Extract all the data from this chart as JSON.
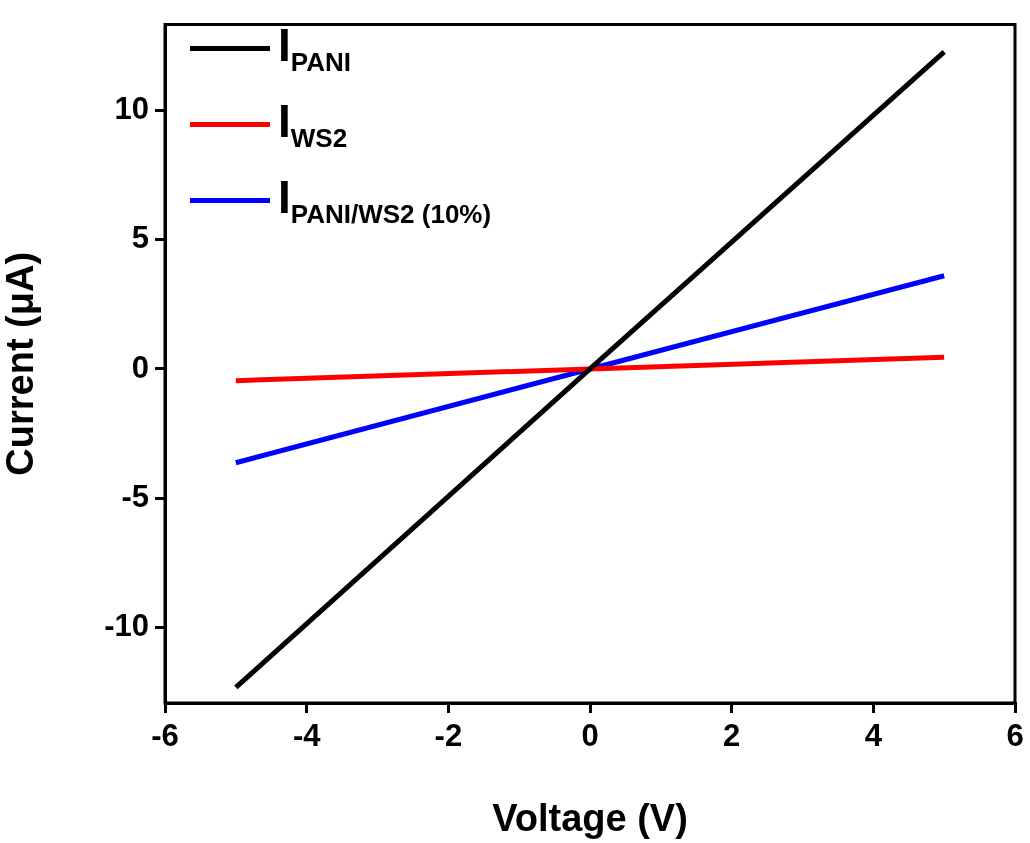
{
  "chart_data": {
    "type": "line",
    "xlabel": "Voltage (V)",
    "ylabel": "Current (μA)",
    "x": [
      -5,
      0,
      5
    ],
    "series": [
      {
        "name": "I$_{PANI}$",
        "color": "#000000",
        "values": [
          -12.3,
          0,
          12.25
        ]
      },
      {
        "name": "I$_{WS2}$",
        "color": "#ff0000",
        "values": [
          -0.45,
          0,
          0.45
        ]
      },
      {
        "name": "I$_{PANI/WS2 (10%)}$",
        "color": "#0000ff",
        "values": [
          -3.62,
          0,
          3.6
        ]
      }
    ],
    "xlim": [
      -6,
      6
    ],
    "xticks": [
      -6,
      -4,
      -2,
      0,
      2,
      4,
      6
    ],
    "ylim": [
      -12.9,
      13.3
    ],
    "yticks": [
      -10,
      -5,
      0,
      5,
      10
    ],
    "grid": false,
    "legend": "top left",
    "marker": "none",
    "line_style": "solid"
  }
}
